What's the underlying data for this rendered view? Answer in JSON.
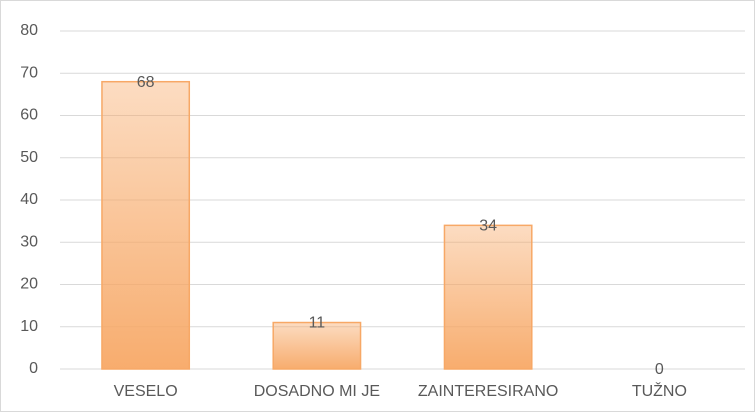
{
  "chart_data": {
    "type": "bar",
    "categories": [
      "VESELO",
      "DOSADNO MI JE",
      "ZAINTERESIRANO",
      "TUŽNO"
    ],
    "values": [
      68,
      11,
      34,
      0
    ],
    "color": "#f7a866",
    "ylim": [
      0,
      80
    ],
    "yticks": [
      0,
      10,
      20,
      30,
      40,
      50,
      60,
      70,
      80
    ],
    "grid": true
  }
}
